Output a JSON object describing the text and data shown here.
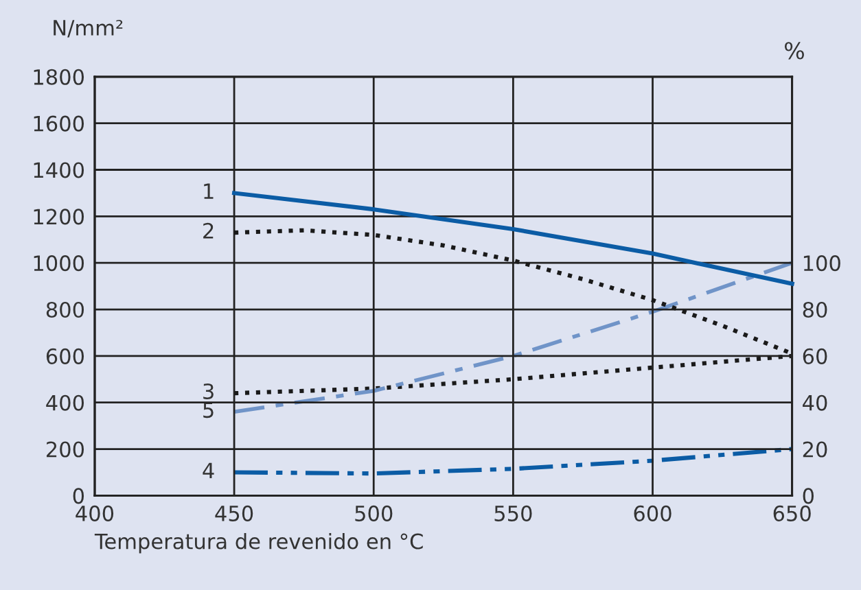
{
  "chart_data": {
    "type": "line",
    "xlabel": "Temperatura de revenido en °C",
    "ylabel": "N/mm²",
    "y2label": "%",
    "xlim": [
      400,
      650
    ],
    "xticks": [
      400,
      450,
      500,
      550,
      600,
      650
    ],
    "ylim": [
      0,
      1800
    ],
    "yticks": [
      0,
      200,
      400,
      600,
      800,
      1000,
      1200,
      1400,
      1600,
      1800
    ],
    "y2lim": [
      0,
      180
    ],
    "y2ticks": [
      0,
      20,
      40,
      60,
      80,
      100
    ],
    "grid": true,
    "legend": false,
    "marker": "none",
    "series": [
      {
        "name": "1",
        "color": "#0b5ca5",
        "line_style": "solid",
        "x": [
          450,
          500,
          550,
          600,
          650
        ],
        "values": [
          1300,
          1230,
          1145,
          1040,
          910
        ]
      },
      {
        "name": "2",
        "color": "#1a1a1a",
        "line_style": "dotted",
        "x": [
          450,
          475,
          500,
          525,
          550,
          575,
          600,
          625,
          650
        ],
        "values": [
          1130,
          1140,
          1120,
          1075,
          1010,
          930,
          840,
          730,
          610
        ]
      },
      {
        "name": "3",
        "color": "#1a1a1a",
        "line_style": "dotted",
        "axis": "y2",
        "x": [
          450,
          500,
          550,
          600,
          650
        ],
        "values": [
          44,
          46,
          50,
          55,
          60
        ]
      },
      {
        "name": "5",
        "color": "#7094c8",
        "line_style": "dashdot",
        "axis": "y2",
        "x": [
          450,
          500,
          550,
          600,
          650
        ],
        "values": [
          36,
          45,
          60,
          79,
          100
        ]
      },
      {
        "name": "4",
        "color": "#0b5ca5",
        "line_style": "dashdotdot",
        "axis": "y2",
        "x": [
          450,
          500,
          550,
          600,
          650
        ],
        "values": [
          10,
          9.5,
          11.5,
          15,
          20
        ]
      }
    ]
  }
}
